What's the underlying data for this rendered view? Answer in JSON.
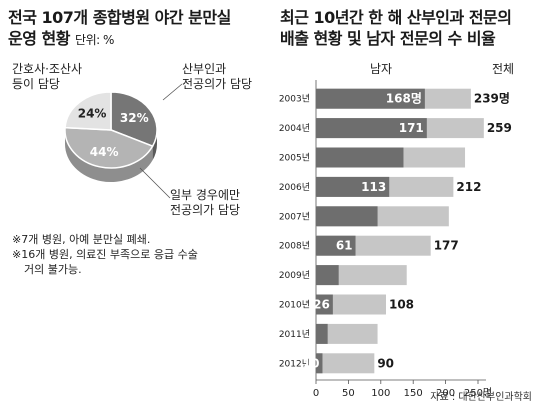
{
  "left": {
    "title_line1": "전국 107개 종합병원 야간 분만실",
    "title_line2": "운영 현황",
    "unit": "단위: %",
    "labels": {
      "nurse": [
        "간호사·조산사",
        "등이 담당"
      ],
      "obgyn": [
        "산부인과",
        "전공의가 담당"
      ],
      "general": [
        "일부 경우에만",
        "전공의가 담당"
      ]
    },
    "notes": [
      "※7개 병원, 아예 분만실 폐쇄.",
      "※16개 병원, 의료진 부족으로 응급 수술",
      "거의 불가능."
    ]
  },
  "right": {
    "title_line1": "최근 10년간 한 해 산부인과 전문의",
    "title_line2": "배출 현황 및 남자 전문의 수 비율",
    "col_male": "남자",
    "col_total": "전체",
    "source": "자료 : 대한산부인과학회"
  },
  "chart_data": [
    {
      "type": "pie",
      "unit": "%",
      "slices": [
        {
          "key": "obgyn",
          "label": "산부인과 전공의가 담당",
          "value": 32,
          "color": "#767676"
        },
        {
          "key": "general",
          "label": "일부 경우에만 전공의가 담당",
          "value": 44,
          "color": "#b4b4b4"
        },
        {
          "key": "nurse",
          "label": "간호사·조산사 등이 담당",
          "value": 24,
          "color": "#e3e3e3"
        }
      ]
    },
    {
      "type": "bar",
      "orientation": "horizontal",
      "categories": [
        "2003년",
        "2004년",
        "2005년",
        "2006년",
        "2007년",
        "2008년",
        "2009년",
        "2010년",
        "2011년",
        "2012년"
      ],
      "series": [
        {
          "name": "전체",
          "values": [
            239,
            259,
            230,
            212,
            205,
            177,
            140,
            108,
            95,
            90
          ],
          "color": "#c6c6c6"
        },
        {
          "name": "남자",
          "values": [
            168,
            171,
            135,
            113,
            95,
            61,
            35,
            26,
            18,
            10
          ],
          "color": "#6e6e6e"
        }
      ],
      "data_labels": {
        "male": [
          "168명",
          "171",
          "",
          "113",
          "",
          "61",
          "",
          "26",
          "",
          "10"
        ],
        "total": [
          "239명",
          "259",
          "",
          "212",
          "",
          "177",
          "",
          "108",
          "",
          "90"
        ]
      },
      "xticks": [
        "0",
        "50",
        "100",
        "150",
        "200",
        "250명"
      ],
      "xlim": [
        0,
        250
      ]
    }
  ]
}
